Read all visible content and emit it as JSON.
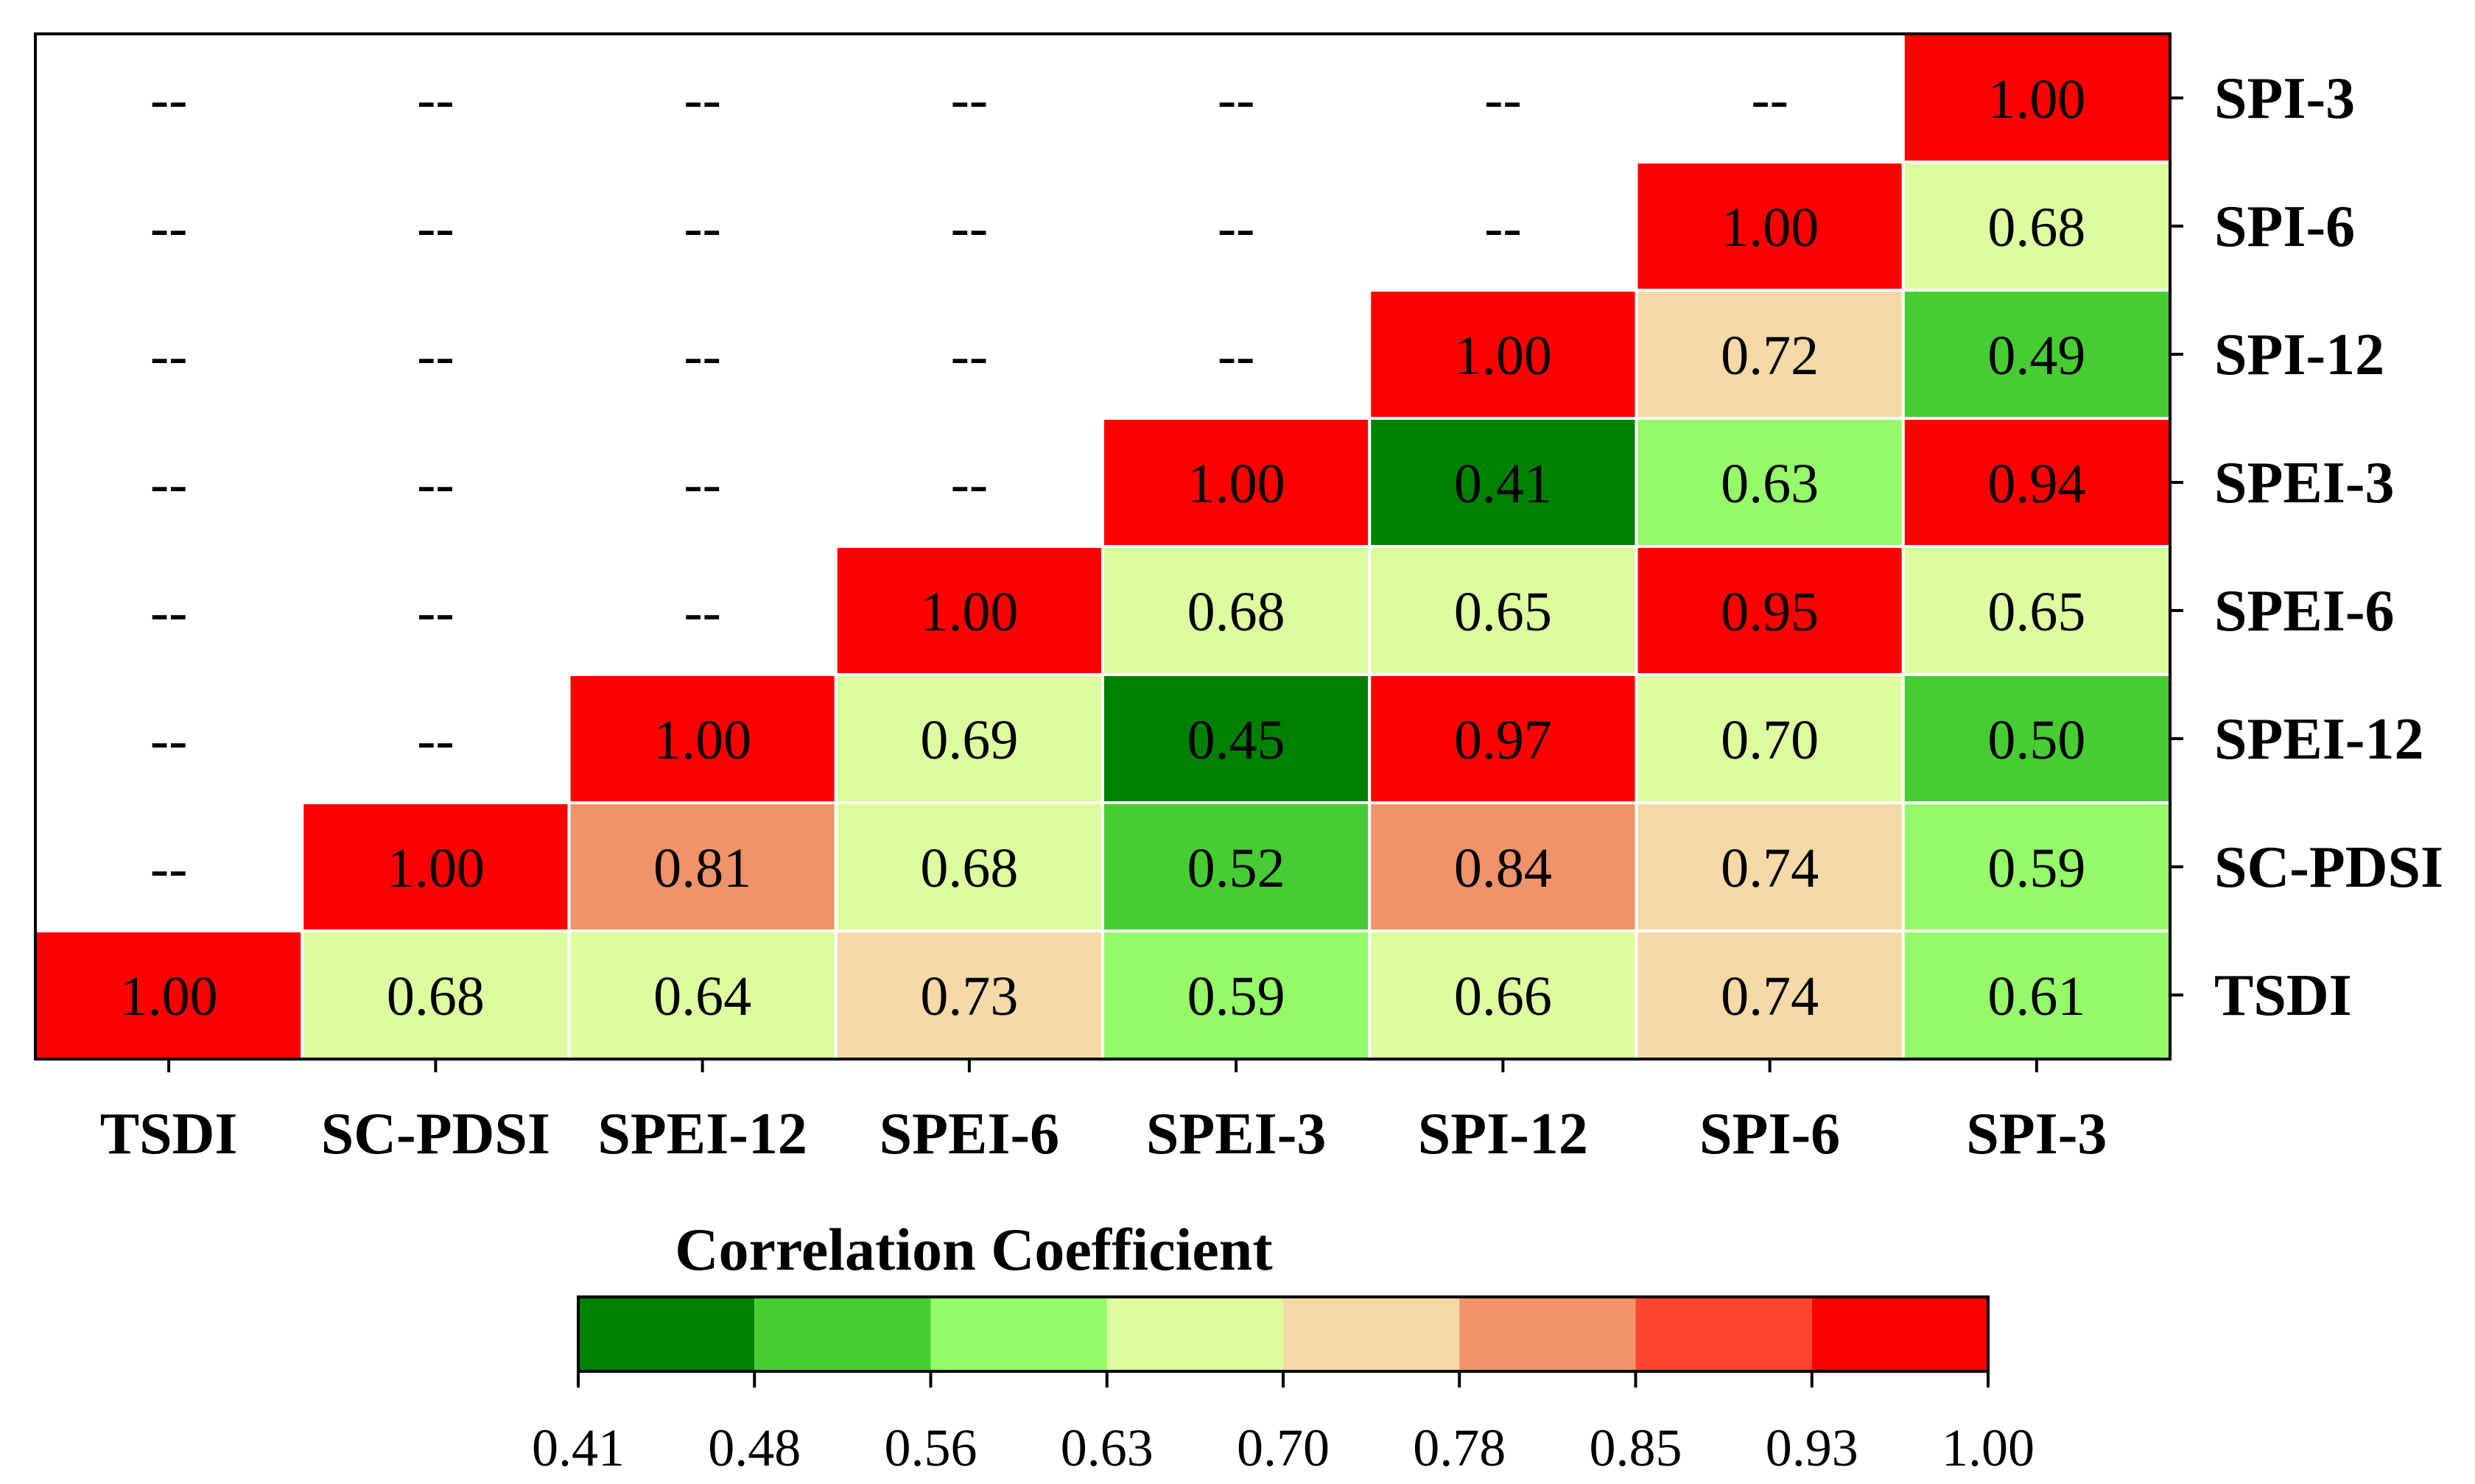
{
  "chart_data": {
    "type": "heatmap",
    "title": "",
    "x_labels": [
      "TSDI",
      "SC-PDSI",
      "SPEI-12",
      "SPEI-6",
      "SPEI-3",
      "SPI-12",
      "SPI-6",
      "SPI-3"
    ],
    "y_labels": [
      "SPI-3",
      "SPI-6",
      "SPI-12",
      "SPEI-3",
      "SPEI-6",
      "SPEI-12",
      "SC-PDSI",
      "TSDI"
    ],
    "values": [
      [
        "--",
        "--",
        "--",
        "--",
        "--",
        "--",
        "--",
        "1.00"
      ],
      [
        "--",
        "--",
        "--",
        "--",
        "--",
        "--",
        "1.00",
        "0.68"
      ],
      [
        "--",
        "--",
        "--",
        "--",
        "--",
        "1.00",
        "0.72",
        "0.49"
      ],
      [
        "--",
        "--",
        "--",
        "--",
        "1.00",
        "0.41",
        "0.63",
        "0.94"
      ],
      [
        "--",
        "--",
        "--",
        "1.00",
        "0.68",
        "0.65",
        "0.95",
        "0.65"
      ],
      [
        "--",
        "--",
        "1.00",
        "0.69",
        "0.45",
        "0.97",
        "0.70",
        "0.50"
      ],
      [
        "--",
        "1.00",
        "0.81",
        "0.68",
        "0.52",
        "0.84",
        "0.74",
        "0.59"
      ],
      [
        "1.00",
        "0.68",
        "0.64",
        "0.73",
        "0.59",
        "0.66",
        "0.74",
        "0.61"
      ]
    ],
    "colorbar": {
      "title": "Correlation Coefficient",
      "ticks": [
        "0.41",
        "0.48",
        "0.56",
        "0.63",
        "0.70",
        "0.78",
        "0.85",
        "0.93",
        "1.00"
      ],
      "colors": [
        "#008000",
        "#47cc34",
        "#95fa69",
        "#ddfca0",
        "#f5d9a6",
        "#ee936a",
        "#fe4530",
        "#ff0000"
      ]
    },
    "legend_position": "bottom",
    "missing_label": "--"
  }
}
